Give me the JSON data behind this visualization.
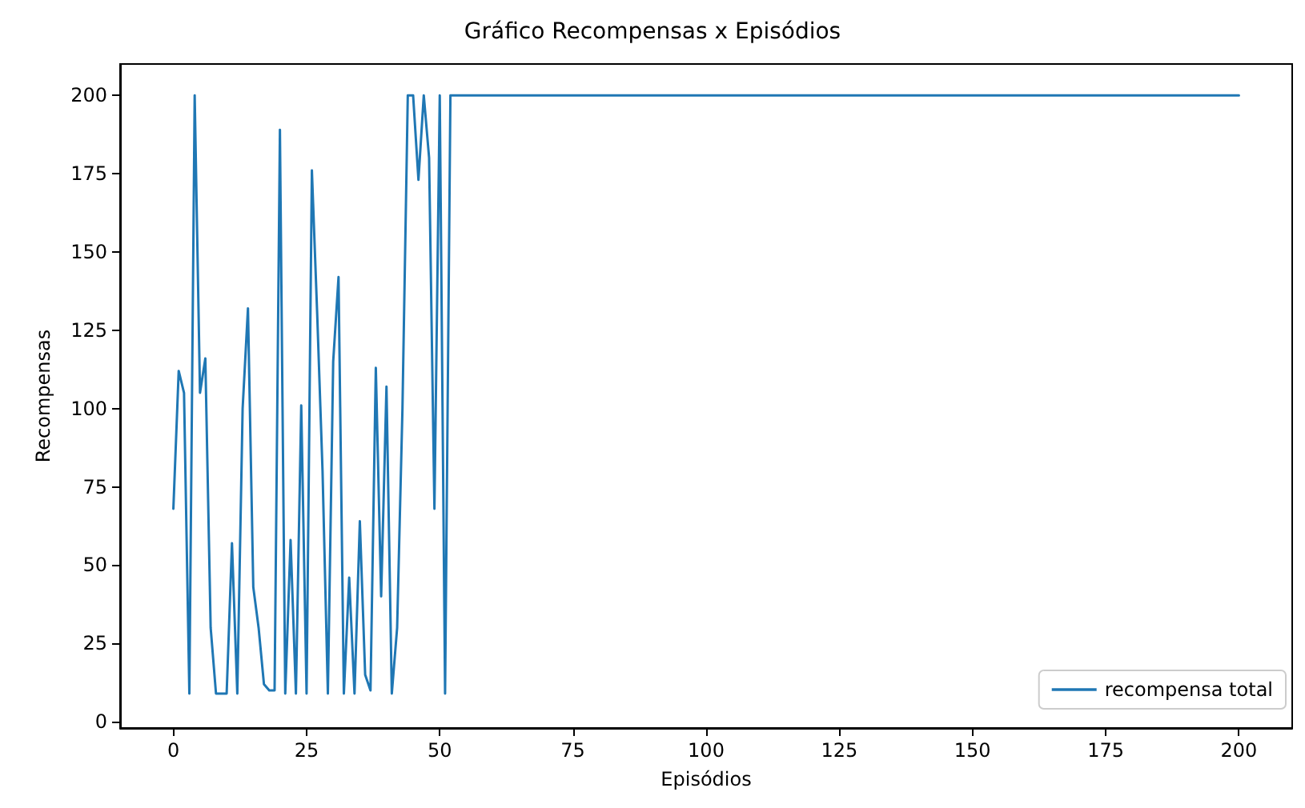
{
  "chart_data": {
    "type": "line",
    "title": "Gráfico Recompensas x Episódios",
    "xlabel": "Episódios",
    "ylabel": "Recompensas",
    "series": [
      {
        "name": "recompensa total",
        "color": "#1f77b4",
        "x": [
          0,
          1,
          2,
          3,
          4,
          5,
          6,
          7,
          8,
          9,
          10,
          11,
          12,
          13,
          14,
          15,
          16,
          17,
          18,
          19,
          20,
          21,
          22,
          23,
          24,
          25,
          26,
          27,
          28,
          29,
          30,
          31,
          32,
          33,
          34,
          35,
          36,
          37,
          38,
          39,
          40,
          41,
          42,
          43,
          44,
          45,
          46,
          47,
          48,
          49,
          50,
          51,
          52,
          200
        ],
        "values": [
          68,
          112,
          105,
          9,
          200,
          105,
          116,
          30,
          9,
          9,
          9,
          57,
          9,
          100,
          132,
          43,
          30,
          12,
          10,
          10,
          189,
          9,
          58,
          9,
          101,
          9,
          176,
          130,
          80,
          9,
          115,
          142,
          9,
          46,
          9,
          64,
          15,
          10,
          113,
          40,
          107,
          9,
          30,
          100,
          200,
          200,
          173,
          200,
          180,
          68,
          200,
          9,
          200,
          200
        ]
      }
    ],
    "xlim": [
      -10,
      210
    ],
    "xticks": [
      0,
      25,
      50,
      75,
      100,
      125,
      150,
      175,
      200
    ],
    "ylim": [
      -2,
      210
    ],
    "yticks": [
      0,
      25,
      50,
      75,
      100,
      125,
      150,
      175,
      200
    ],
    "legend": "bottom right",
    "grid": false,
    "marker": "none",
    "line_style": "solid"
  }
}
